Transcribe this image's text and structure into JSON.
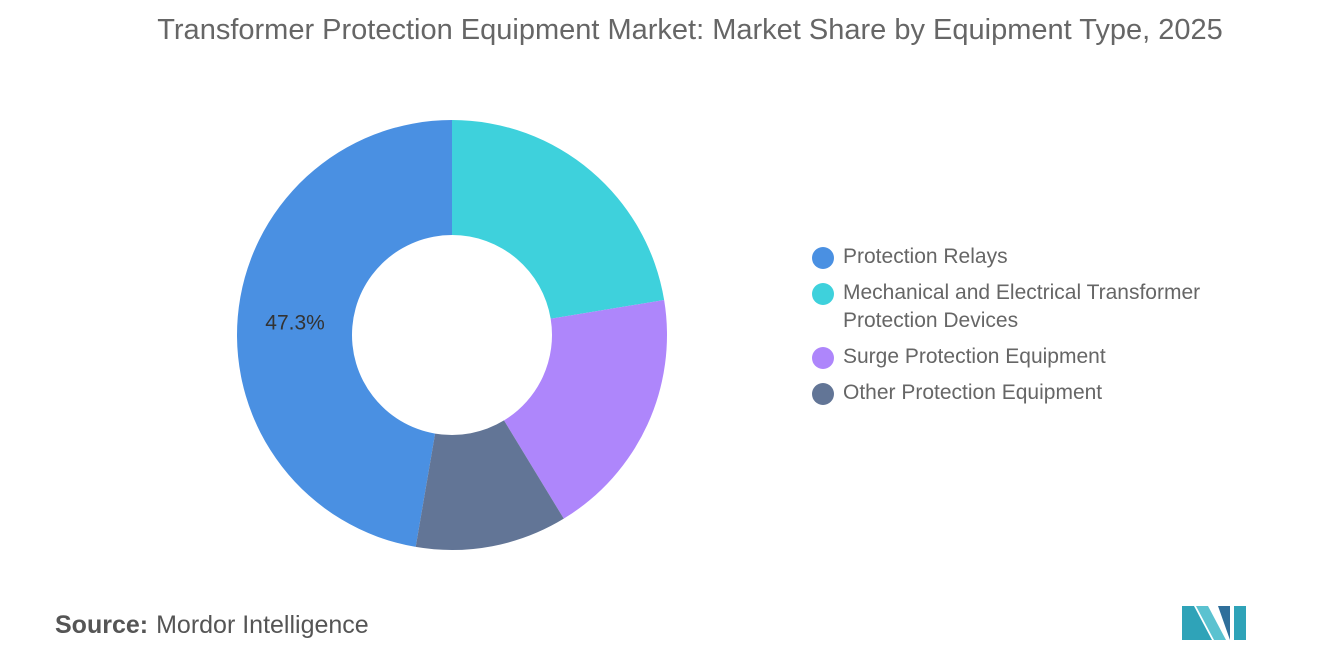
{
  "colors": {
    "protection_relays": "#4a90e2",
    "mechanical_electrical": "#3ed1dc",
    "surge_protection": "#ae86fb",
    "other": "#627596"
  },
  "chart_data": {
    "type": "pie",
    "title": "Transformer Protection Equipment Market: Market Share by Equipment Type, 2025",
    "donut": true,
    "legend_position": "right",
    "categories": [
      "Protection Relays",
      "Mechanical and Electrical Transformer Protection Devices",
      "Surge Protection Equipment",
      "Other Protection Equipment"
    ],
    "values": [
      47.3,
      22.4,
      18.9,
      11.4
    ],
    "colors": [
      "#4a90e2",
      "#3ed1dc",
      "#ae86fb",
      "#627596"
    ],
    "data_labels": [
      "47.3%",
      "",
      "",
      ""
    ]
  },
  "source": {
    "label": "Source:",
    "text": "Mordor Intelligence"
  },
  "logo": {
    "icon": "mordor-intelligence-logo-icon"
  }
}
